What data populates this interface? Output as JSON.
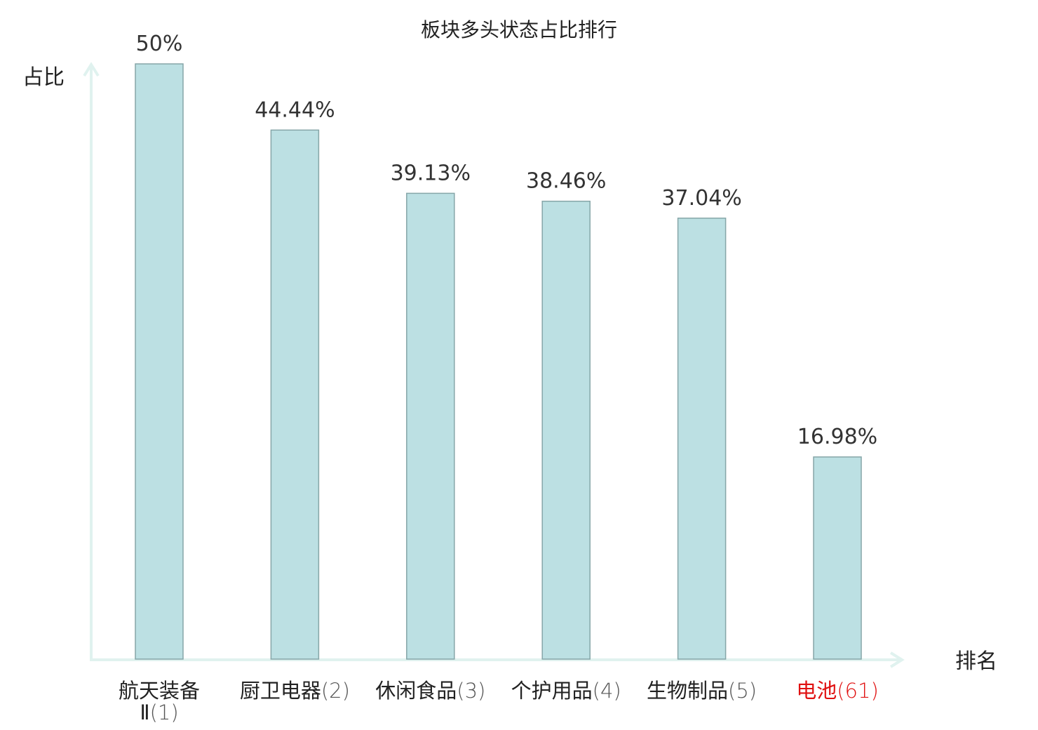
{
  "chart_data": {
    "type": "bar",
    "title": "板块多头状态占比排行",
    "xlabel": "排名",
    "ylabel": "占比",
    "ylim": [
      0,
      50
    ],
    "categories": [
      {
        "name": "航天装备Ⅱ",
        "rank": "(1)",
        "highlight": false
      },
      {
        "name": "厨卫电器",
        "rank": "(2)",
        "highlight": false
      },
      {
        "name": "休闲食品",
        "rank": "(3)",
        "highlight": false
      },
      {
        "name": "个护用品",
        "rank": "(4)",
        "highlight": false
      },
      {
        "name": "生物制品",
        "rank": "(5)",
        "highlight": false
      },
      {
        "name": "电池",
        "rank": "(61)",
        "highlight": true
      }
    ],
    "values": [
      50,
      44.44,
      39.13,
      38.46,
      37.04,
      16.98
    ],
    "value_labels": [
      "50%",
      "44.44%",
      "39.13%",
      "38.46%",
      "37.04%",
      "16.98%"
    ],
    "colors": {
      "bar_fill": "#bce0e3",
      "bar_stroke": "#86a6a8",
      "axis": "#e0f2ef",
      "text": "#222222",
      "rank_text": "#555555",
      "highlight": "#e01010"
    }
  }
}
